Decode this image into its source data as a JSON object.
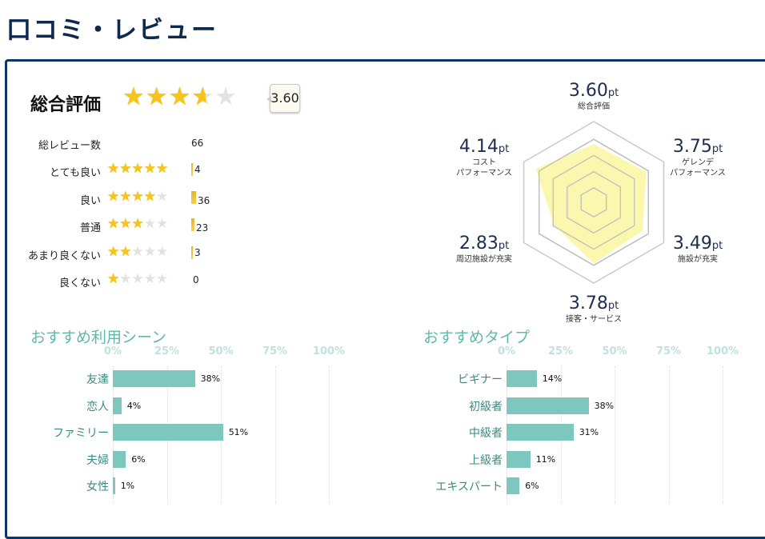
{
  "title": "口コミ・レビュー",
  "overall": {
    "label": "総合評価",
    "score": "3.60",
    "rating": 3.6,
    "max": 5,
    "star_color": "#f6c51b"
  },
  "summary": {
    "total_label": "総レビュー数",
    "total": "66",
    "rows": [
      {
        "label": "とても良い",
        "stars": 5,
        "count": "4"
      },
      {
        "label": "良い",
        "stars": 4,
        "count": "36"
      },
      {
        "label": "普通",
        "stars": 3,
        "count": "23"
      },
      {
        "label": "あまり良くない",
        "stars": 2,
        "count": "3"
      },
      {
        "label": "良くない",
        "stars": 1,
        "count": "0"
      }
    ]
  },
  "radar": {
    "unit": "pt",
    "max": 5,
    "fill_color": "#fbf59a",
    "axes": [
      {
        "value": "3.60",
        "name": "総合評価"
      },
      {
        "value": "3.75",
        "name": "ゲレンデ\nパフォーマンス"
      },
      {
        "value": "3.49",
        "name": "施設が充実"
      },
      {
        "value": "3.78",
        "name": "接客・サービス"
      },
      {
        "value": "2.83",
        "name": "周辺施設が充実"
      },
      {
        "value": "4.14",
        "name": "コスト\nパフォーマンス"
      }
    ]
  },
  "scene": {
    "title": "おすすめ利用シーン",
    "ticks": [
      "0%",
      "25%",
      "50%",
      "75%",
      "100%"
    ],
    "items": [
      {
        "label": "友達",
        "value": 38
      },
      {
        "label": "恋人",
        "value": 4
      },
      {
        "label": "ファミリー",
        "value": 51
      },
      {
        "label": "夫婦",
        "value": 6
      },
      {
        "label": "女性",
        "value": 1
      }
    ]
  },
  "type": {
    "title": "おすすめタイプ",
    "ticks": [
      "0%",
      "25%",
      "50%",
      "75%",
      "100%"
    ],
    "items": [
      {
        "label": "ビギナー",
        "value": 14
      },
      {
        "label": "初級者",
        "value": 38
      },
      {
        "label": "中級者",
        "value": 31
      },
      {
        "label": "上級者",
        "value": 11
      },
      {
        "label": "エキスパート",
        "value": 6
      }
    ]
  },
  "bar_color": "#7ec7bf"
}
